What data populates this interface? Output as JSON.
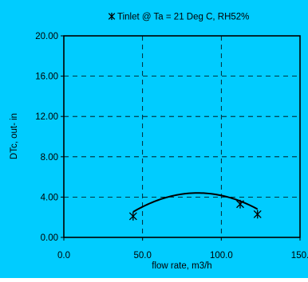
{
  "colors": {
    "background": "#00ccff",
    "plot_area": "#00ccff",
    "axis": "#000000",
    "grid": "#000000",
    "series": "#000000"
  },
  "chart_data": {
    "type": "scatter",
    "title": "",
    "xlabel": "flow rate, m3/h",
    "ylabel": "DTc, out- in",
    "xlim": [
      0,
      150
    ],
    "ylim": [
      0,
      20
    ],
    "x_ticks": [
      0,
      50,
      100,
      150
    ],
    "x_tick_labels": [
      "0.0",
      "50.0",
      "100.0",
      "150."
    ],
    "y_ticks": [
      0,
      4,
      8,
      12,
      16,
      20
    ],
    "y_tick_labels": [
      "0.00",
      "4.00",
      "8.00",
      "12.00",
      "16.00",
      "20.00"
    ],
    "grid": true,
    "grid_style": "dashed",
    "legend": {
      "placement": "top-center",
      "marker": "asterisk",
      "label": "Tinlet @ Ta = 21 Deg C, RH52%"
    },
    "series": [
      {
        "name": "Tinlet @ Ta = 21 Deg C, RH52%",
        "marker": "asterisk",
        "points": [
          {
            "x": 44,
            "y": 2.1
          },
          {
            "x": 112,
            "y": 3.3
          },
          {
            "x": 123,
            "y": 2.3
          }
        ]
      }
    ],
    "trendline": {
      "type": "polynomial",
      "x_range": [
        44,
        123
      ],
      "coefficients": [
        -3.65,
        0.1894,
        -0.001113
      ]
    }
  }
}
